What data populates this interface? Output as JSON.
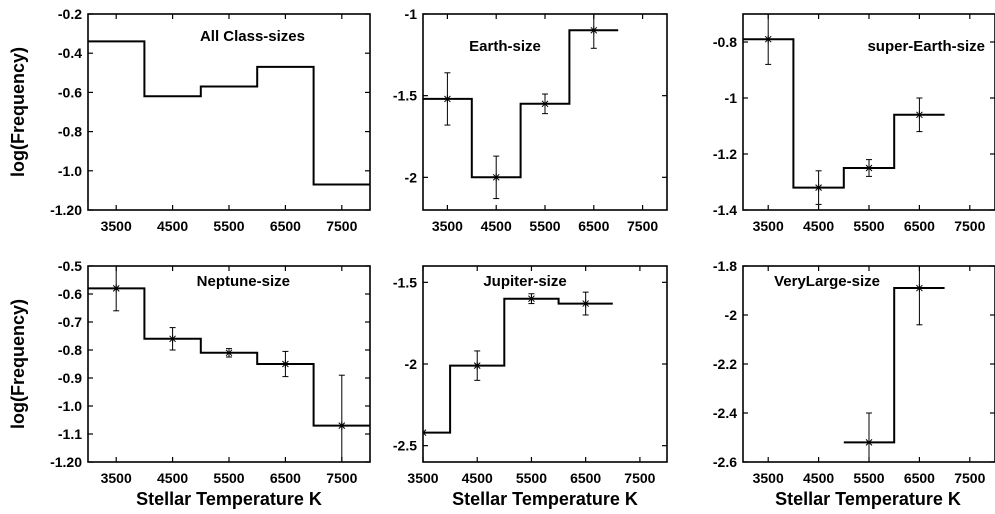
{
  "figure": {
    "ylabel": "log(Frequency)",
    "xlabel": "Stellar Temperature K"
  },
  "chart_data": [
    {
      "type": "line",
      "title": "All Class-sizes",
      "xlim": [
        3000,
        8000
      ],
      "ylim": [
        -1.2,
        -0.2
      ],
      "xticks": [
        3500,
        4500,
        5500,
        6500,
        7500
      ],
      "xtick_labels": [
        "3500",
        "4500",
        "5500",
        "6500",
        "7500"
      ],
      "yticks": [
        -1.2,
        -1.0,
        -0.8,
        -0.6,
        -0.4,
        -0.2
      ],
      "ytick_labels": [
        "-1.20",
        "-1.0",
        "-0.8",
        "-0.6",
        "-0.4",
        "-0.2"
      ],
      "x": [
        3500,
        4500,
        5500,
        6500,
        7500
      ],
      "y": [
        -0.34,
        -0.62,
        -0.57,
        -0.47,
        -1.07
      ],
      "err": [],
      "bin_width": 1000,
      "grid": false,
      "xlabel": "",
      "ylabel": "log(Frequency)"
    },
    {
      "type": "line",
      "title": "Earth-size",
      "xlim": [
        3000,
        8000
      ],
      "ylim": [
        -2.2,
        -1.0
      ],
      "xticks": [
        3500,
        4500,
        5500,
        6500,
        7500
      ],
      "xtick_labels": [
        "3500",
        "4500",
        "5500",
        "6500",
        "7500"
      ],
      "yticks": [
        -2.0,
        -1.5,
        -1.0
      ],
      "ytick_labels": [
        "-2",
        "-1.5",
        "-1"
      ],
      "x": [
        3500,
        4500,
        5500,
        6500
      ],
      "y": [
        -1.52,
        -2.0,
        -1.55,
        -1.1
      ],
      "err": [
        0.16,
        0.13,
        0.06,
        0.11
      ],
      "bin_width": 1000,
      "grid": false,
      "xlabel": "",
      "ylabel": ""
    },
    {
      "type": "line",
      "title": "super-Earth-size",
      "xlim": [
        3000,
        8000
      ],
      "ylim": [
        -1.4,
        -0.7
      ],
      "xticks": [
        3500,
        4500,
        5500,
        6500,
        7500
      ],
      "xtick_labels": [
        "3500",
        "4500",
        "5500",
        "6500",
        "7500"
      ],
      "yticks": [
        -1.4,
        -1.2,
        -1.0,
        -0.8
      ],
      "ytick_labels": [
        "-1.4",
        "-1.2",
        "-1",
        "-0.8"
      ],
      "x": [
        3500,
        4500,
        5500,
        6500
      ],
      "y": [
        -0.79,
        -1.32,
        -1.25,
        -1.06
      ],
      "err": [
        0.09,
        0.06,
        0.03,
        0.06
      ],
      "bin_width": 1000,
      "grid": false,
      "xlabel": "",
      "ylabel": ""
    },
    {
      "type": "line",
      "title": "Neptune-size",
      "xlim": [
        3000,
        8000
      ],
      "ylim": [
        -1.2,
        -0.5
      ],
      "xticks": [
        3500,
        4500,
        5500,
        6500,
        7500
      ],
      "xtick_labels": [
        "3500",
        "4500",
        "5500",
        "6500",
        "7500"
      ],
      "yticks": [
        -1.2,
        -1.1,
        -1.0,
        -0.9,
        -0.8,
        -0.7,
        -0.6,
        -0.5
      ],
      "ytick_labels": [
        "-1.20",
        "-1.1",
        "-1.0",
        "-0.9",
        "-0.8",
        "-0.7",
        "-0.6",
        "-0.5"
      ],
      "x": [
        3500,
        4500,
        5500,
        6500,
        7500
      ],
      "y": [
        -0.58,
        -0.76,
        -0.81,
        -0.85,
        -1.07
      ],
      "err": [
        0.08,
        0.04,
        0.015,
        0.045,
        0.18
      ],
      "bin_width": 1000,
      "grid": false,
      "xlabel": "Stellar Temperature K",
      "ylabel": "log(Frequency)"
    },
    {
      "type": "line",
      "title": "Jupiter-size",
      "xlim": [
        3500,
        8000
      ],
      "ylim": [
        -2.6,
        -1.4
      ],
      "xticks": [
        3500,
        4500,
        5500,
        6500,
        7500
      ],
      "xtick_labels": [
        "3500",
        "4500",
        "5500",
        "6500",
        "7500"
      ],
      "yticks": [
        -2.5,
        -2.0,
        -1.5
      ],
      "ytick_labels": [
        "-2.5",
        "-2",
        "-1.5"
      ],
      "x": [
        3500,
        4500,
        5500,
        6500
      ],
      "y": [
        -2.42,
        -2.01,
        -1.6,
        -1.63
      ],
      "err": [
        0,
        0.09,
        0.03,
        0.07
      ],
      "bin_width": 1000,
      "grid": false,
      "xlabel": "Stellar Temperature K",
      "ylabel": ""
    },
    {
      "type": "line",
      "title": "VeryLarge-size",
      "xlim": [
        3000,
        8000
      ],
      "ylim": [
        -2.6,
        -1.8
      ],
      "xticks": [
        3500,
        4500,
        5500,
        6500,
        7500
      ],
      "xtick_labels": [
        "3500",
        "4500",
        "5500",
        "6500",
        "7500"
      ],
      "yticks": [
        -2.6,
        -2.4,
        -2.2,
        -2.0,
        -1.8
      ],
      "ytick_labels": [
        "-2.6",
        "-2.4",
        "-2.2",
        "-2",
        "-1.8"
      ],
      "x": [
        5500,
        6500
      ],
      "y": [
        -2.52,
        -1.89
      ],
      "err": [
        0.12,
        0.15
      ],
      "bin_width": 1000,
      "grid": false,
      "xlabel": "Stellar Temperature K",
      "ylabel": ""
    }
  ]
}
